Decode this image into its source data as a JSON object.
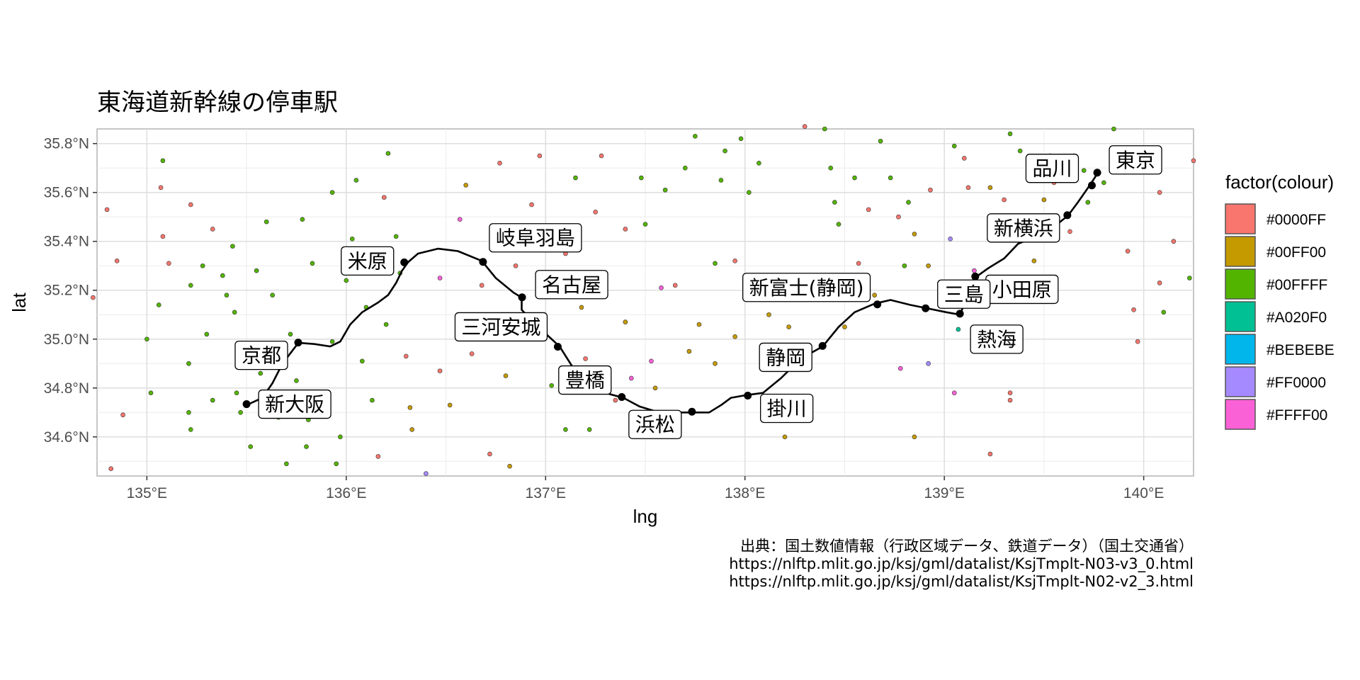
{
  "chart_data": {
    "type": "map",
    "title": "東海道新幹線の停車駅",
    "xlabel": "lng",
    "ylabel": "lat",
    "xlim": [
      134.75,
      140.25
    ],
    "ylim": [
      34.44,
      35.86
    ],
    "x_ticks": [
      {
        "value": 135,
        "label": "135°E"
      },
      {
        "value": 136,
        "label": "136°E"
      },
      {
        "value": 137,
        "label": "137°E"
      },
      {
        "value": 138,
        "label": "138°E"
      },
      {
        "value": 139,
        "label": "139°E"
      },
      {
        "value": 140,
        "label": "140°E"
      }
    ],
    "y_ticks": [
      {
        "value": 34.6,
        "label": "34.6°N"
      },
      {
        "value": 34.8,
        "label": "34.8°N"
      },
      {
        "value": 35.0,
        "label": "35.0°N"
      },
      {
        "value": 35.2,
        "label": "35.2°N"
      },
      {
        "value": 35.4,
        "label": "35.4°N"
      },
      {
        "value": 35.6,
        "label": "35.6°N"
      },
      {
        "value": 35.8,
        "label": "35.8°N"
      }
    ],
    "grid": true,
    "legend": {
      "title": "factor(colour)",
      "placement": "right",
      "items": [
        {
          "label": "#0000FF",
          "color": "#F8766D"
        },
        {
          "label": "#00FF00",
          "color": "#C49A00"
        },
        {
          "label": "#00FFFF",
          "color": "#53B400"
        },
        {
          "label": "#A020F0",
          "color": "#00C094"
        },
        {
          "label": "#BEBEBE",
          "color": "#00B6EB"
        },
        {
          "label": "#FF0000",
          "color": "#A58AFF"
        },
        {
          "label": "#FFFF00",
          "color": "#FB61D7"
        }
      ]
    },
    "route": [
      [
        135.5,
        34.73
      ],
      [
        135.58,
        34.76
      ],
      [
        135.63,
        34.82
      ],
      [
        135.68,
        34.9
      ],
      [
        135.76,
        34.985
      ],
      [
        135.84,
        34.98
      ],
      [
        135.92,
        34.97
      ],
      [
        135.97,
        34.99
      ],
      [
        136.02,
        35.06
      ],
      [
        136.08,
        35.11
      ],
      [
        136.16,
        35.15
      ],
      [
        136.21,
        35.18
      ],
      [
        136.25,
        35.23
      ],
      [
        136.28,
        35.28
      ],
      [
        136.31,
        35.315
      ],
      [
        136.36,
        35.35
      ],
      [
        136.46,
        35.37
      ],
      [
        136.56,
        35.36
      ],
      [
        136.68,
        35.32
      ],
      [
        136.75,
        35.25
      ],
      [
        136.84,
        35.19
      ],
      [
        136.88,
        35.17
      ],
      [
        136.88,
        35.12
      ],
      [
        136.95,
        35.06
      ],
      [
        137.07,
        34.97
      ],
      [
        137.14,
        34.88
      ],
      [
        137.2,
        34.83
      ],
      [
        137.3,
        34.78
      ],
      [
        137.39,
        34.76
      ],
      [
        137.47,
        34.725
      ],
      [
        137.55,
        34.705
      ],
      [
        137.65,
        34.7
      ],
      [
        137.73,
        34.7
      ],
      [
        137.82,
        34.7
      ],
      [
        137.88,
        34.73
      ],
      [
        137.93,
        34.76
      ],
      [
        138.0,
        34.77
      ],
      [
        138.09,
        34.78
      ],
      [
        138.18,
        34.84
      ],
      [
        138.28,
        34.92
      ],
      [
        138.39,
        34.97
      ],
      [
        138.47,
        35.05
      ],
      [
        138.55,
        35.11
      ],
      [
        138.65,
        35.145
      ],
      [
        138.73,
        35.16
      ],
      [
        138.83,
        35.14
      ],
      [
        138.92,
        35.125
      ],
      [
        139.01,
        35.11
      ],
      [
        139.08,
        35.1
      ],
      [
        139.11,
        35.17
      ],
      [
        139.16,
        35.255
      ],
      [
        139.22,
        35.29
      ],
      [
        139.3,
        35.33
      ],
      [
        139.37,
        35.39
      ],
      [
        139.46,
        35.42
      ],
      [
        139.55,
        35.46
      ],
      [
        139.62,
        35.505
      ],
      [
        139.67,
        35.56
      ],
      [
        139.73,
        35.63
      ],
      [
        139.77,
        35.68
      ]
    ],
    "stations": [
      {
        "name": "東京",
        "lng": 139.767,
        "lat": 35.681
      },
      {
        "name": "品川",
        "lng": 139.74,
        "lat": 35.629
      },
      {
        "name": "新横浜",
        "lng": 139.617,
        "lat": 35.507
      },
      {
        "name": "小田原",
        "lng": 139.155,
        "lat": 35.256
      },
      {
        "name": "熱海",
        "lng": 139.078,
        "lat": 35.104
      },
      {
        "name": "三島",
        "lng": 138.906,
        "lat": 35.126
      },
      {
        "name": "新富士(静岡)",
        "lng": 138.664,
        "lat": 35.142
      },
      {
        "name": "静岡",
        "lng": 138.389,
        "lat": 34.972
      },
      {
        "name": "掛川",
        "lng": 138.014,
        "lat": 34.769
      },
      {
        "name": "浜松",
        "lng": 137.734,
        "lat": 34.703
      },
      {
        "name": "豊橋",
        "lng": 137.382,
        "lat": 34.763
      },
      {
        "name": "三河安城",
        "lng": 137.061,
        "lat": 34.969
      },
      {
        "name": "名古屋",
        "lng": 136.882,
        "lat": 35.171
      },
      {
        "name": "岐阜羽島",
        "lng": 136.686,
        "lat": 35.316
      },
      {
        "name": "米原",
        "lng": 136.291,
        "lat": 35.314
      },
      {
        "name": "京都",
        "lng": 135.759,
        "lat": 34.986
      },
      {
        "name": "新大阪",
        "lng": 135.5,
        "lat": 34.734
      }
    ],
    "boundary_points": [
      [
        134.8,
        35.53,
        0
      ],
      [
        134.85,
        35.32,
        0
      ],
      [
        134.73,
        35.17,
        0
      ],
      [
        134.88,
        34.69,
        0
      ],
      [
        134.82,
        34.47,
        0
      ],
      [
        135.0,
        35.0,
        2
      ],
      [
        135.02,
        34.78,
        2
      ],
      [
        135.08,
        35.73,
        2
      ],
      [
        135.07,
        35.62,
        0
      ],
      [
        135.08,
        35.42,
        0
      ],
      [
        135.06,
        35.14,
        2
      ],
      [
        135.11,
        35.31,
        0
      ],
      [
        135.22,
        35.55,
        0
      ],
      [
        135.22,
        35.22,
        2
      ],
      [
        135.21,
        34.9,
        2
      ],
      [
        135.21,
        34.7,
        2
      ],
      [
        135.22,
        34.63,
        2
      ],
      [
        135.28,
        35.3,
        2
      ],
      [
        135.3,
        35.02,
        2
      ],
      [
        135.33,
        35.45,
        0
      ],
      [
        135.33,
        34.75,
        2
      ],
      [
        135.38,
        35.26,
        2
      ],
      [
        135.4,
        35.18,
        2
      ],
      [
        135.43,
        35.38,
        2
      ],
      [
        135.44,
        35.11,
        2
      ],
      [
        135.45,
        34.78,
        2
      ],
      [
        135.47,
        34.7,
        2
      ],
      [
        135.52,
        34.56,
        2
      ],
      [
        135.55,
        35.28,
        2
      ],
      [
        135.57,
        34.86,
        2
      ],
      [
        135.6,
        35.48,
        2
      ],
      [
        135.63,
        35.18,
        2
      ],
      [
        135.66,
        34.68,
        2
      ],
      [
        135.7,
        34.49,
        2
      ],
      [
        135.72,
        35.02,
        2
      ],
      [
        135.75,
        34.83,
        2
      ],
      [
        135.78,
        35.49,
        2
      ],
      [
        135.8,
        34.56,
        2
      ],
      [
        135.81,
        34.67,
        2
      ],
      [
        135.83,
        35.31,
        2
      ],
      [
        135.93,
        35.6,
        2
      ],
      [
        135.93,
        34.99,
        2
      ],
      [
        135.95,
        34.49,
        2
      ],
      [
        135.97,
        34.6,
        2
      ],
      [
        136.0,
        35.24,
        2
      ],
      [
        136.03,
        35.41,
        2
      ],
      [
        136.05,
        35.65,
        2
      ],
      [
        136.08,
        34.91,
        2
      ],
      [
        136.1,
        35.13,
        2
      ],
      [
        136.13,
        34.75,
        2
      ],
      [
        136.16,
        34.52,
        0
      ],
      [
        136.19,
        35.58,
        0
      ],
      [
        136.21,
        35.76,
        2
      ],
      [
        136.2,
        35.06,
        2
      ],
      [
        136.25,
        35.42,
        2
      ],
      [
        136.27,
        35.27,
        2
      ],
      [
        136.3,
        34.93,
        0
      ],
      [
        136.32,
        34.72,
        1
      ],
      [
        136.33,
        34.63,
        1
      ],
      [
        136.4,
        34.45,
        5
      ],
      [
        136.47,
        35.25,
        6
      ],
      [
        136.47,
        34.87,
        0
      ],
      [
        136.52,
        34.73,
        1
      ],
      [
        136.57,
        35.49,
        6
      ],
      [
        136.6,
        35.63,
        1
      ],
      [
        136.63,
        34.94,
        0
      ],
      [
        136.68,
        35.22,
        0
      ],
      [
        136.72,
        34.53,
        0
      ],
      [
        136.77,
        35.72,
        0
      ],
      [
        136.8,
        34.85,
        1
      ],
      [
        136.82,
        34.48,
        1
      ],
      [
        136.85,
        35.3,
        0
      ],
      [
        136.93,
        35.55,
        0
      ],
      [
        136.97,
        35.75,
        0
      ],
      [
        137.0,
        35.45,
        2
      ],
      [
        137.03,
        34.81,
        2
      ],
      [
        137.1,
        35.35,
        0
      ],
      [
        137.1,
        34.63,
        2
      ],
      [
        137.15,
        35.66,
        2
      ],
      [
        137.18,
        35.13,
        1
      ],
      [
        137.2,
        34.92,
        0
      ],
      [
        137.22,
        34.63,
        2
      ],
      [
        137.25,
        35.52,
        0
      ],
      [
        137.28,
        35.75,
        0
      ],
      [
        137.3,
        35.27,
        0
      ],
      [
        137.35,
        34.75,
        0
      ],
      [
        137.4,
        35.07,
        1
      ],
      [
        137.4,
        35.45,
        0
      ],
      [
        137.43,
        34.84,
        6
      ],
      [
        137.48,
        35.66,
        2
      ],
      [
        137.5,
        35.47,
        2
      ],
      [
        137.53,
        34.91,
        6
      ],
      [
        137.55,
        34.8,
        1
      ],
      [
        137.58,
        35.21,
        6
      ],
      [
        137.6,
        35.61,
        2
      ],
      [
        137.65,
        35.22,
        0
      ],
      [
        137.7,
        35.7,
        2
      ],
      [
        137.72,
        34.95,
        1
      ],
      [
        137.75,
        35.83,
        2
      ],
      [
        137.77,
        35.06,
        1
      ],
      [
        137.85,
        35.31,
        2
      ],
      [
        137.85,
        34.9,
        1
      ],
      [
        137.88,
        35.65,
        2
      ],
      [
        137.9,
        35.77,
        2
      ],
      [
        137.95,
        35.32,
        0
      ],
      [
        137.95,
        35.01,
        1
      ],
      [
        137.98,
        35.82,
        2
      ],
      [
        138.02,
        35.6,
        2
      ],
      [
        138.07,
        35.72,
        2
      ],
      [
        138.12,
        35.1,
        1
      ],
      [
        138.2,
        34.6,
        1
      ],
      [
        138.22,
        35.05,
        1
      ],
      [
        138.3,
        35.87,
        0
      ],
      [
        138.4,
        35.86,
        2
      ],
      [
        138.43,
        35.7,
        2
      ],
      [
        138.45,
        35.56,
        2
      ],
      [
        138.47,
        35.47,
        2
      ],
      [
        138.5,
        35.05,
        1
      ],
      [
        138.55,
        35.66,
        2
      ],
      [
        138.57,
        35.31,
        0
      ],
      [
        138.62,
        35.53,
        0
      ],
      [
        138.65,
        35.18,
        1
      ],
      [
        138.68,
        35.81,
        2
      ],
      [
        138.73,
        35.66,
        2
      ],
      [
        138.77,
        35.5,
        0
      ],
      [
        138.78,
        34.88,
        6
      ],
      [
        138.8,
        35.3,
        2
      ],
      [
        138.82,
        35.56,
        2
      ],
      [
        138.85,
        35.43,
        1
      ],
      [
        138.85,
        34.6,
        1
      ],
      [
        138.92,
        35.3,
        1
      ],
      [
        138.92,
        34.9,
        5
      ],
      [
        138.93,
        35.61,
        0
      ],
      [
        139.03,
        35.41,
        5
      ],
      [
        139.05,
        35.79,
        2
      ],
      [
        139.05,
        34.78,
        6
      ],
      [
        139.07,
        35.04,
        3
      ],
      [
        139.1,
        35.74,
        0
      ],
      [
        139.12,
        35.62,
        0
      ],
      [
        139.15,
        35.28,
        6
      ],
      [
        139.23,
        35.62,
        1
      ],
      [
        139.23,
        34.53,
        0
      ],
      [
        139.3,
        35.57,
        0
      ],
      [
        139.33,
        35.84,
        2
      ],
      [
        139.33,
        34.78,
        0
      ],
      [
        139.33,
        34.75,
        0
      ],
      [
        139.38,
        35.77,
        2
      ],
      [
        139.45,
        35.32,
        1
      ],
      [
        139.5,
        35.57,
        1
      ],
      [
        139.53,
        35.75,
        2
      ],
      [
        139.55,
        35.64,
        0
      ],
      [
        139.63,
        35.44,
        0
      ],
      [
        139.65,
        35.75,
        2
      ],
      [
        139.7,
        35.69,
        2
      ],
      [
        139.72,
        35.56,
        2
      ],
      [
        139.8,
        35.64,
        2
      ],
      [
        139.85,
        35.86,
        2
      ],
      [
        139.92,
        35.36,
        0
      ],
      [
        139.95,
        35.12,
        0
      ],
      [
        139.97,
        34.99,
        0
      ],
      [
        140.07,
        35.7,
        2
      ],
      [
        140.08,
        35.6,
        0
      ],
      [
        140.08,
        35.23,
        0
      ],
      [
        140.1,
        35.11,
        2
      ],
      [
        140.15,
        35.4,
        0
      ],
      [
        140.25,
        35.73,
        0
      ],
      [
        140.23,
        35.25,
        2
      ]
    ]
  },
  "caption": {
    "line1": "出典：国土数値情報（行政区域データ、鉄道データ）（国土交通省）",
    "line2": "https://nlftp.mlit.go.jp/ksj/gml/datalist/KsjTmplt-N03-v3_0.html",
    "line3": "https://nlftp.mlit.go.jp/ksj/gml/datalist/KsjTmplt-N02-v2_3.html"
  }
}
